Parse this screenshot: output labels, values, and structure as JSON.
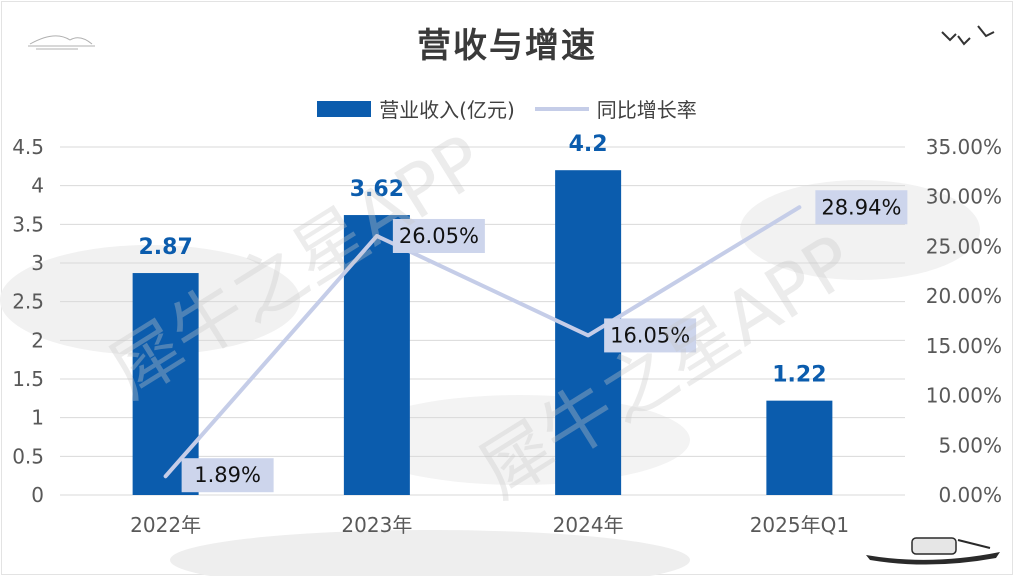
{
  "title": "营收与增速",
  "legend": {
    "bar_label": "营业收入(亿元)",
    "line_label": "同比增长率"
  },
  "watermark": "犀牛之星APP",
  "colors": {
    "bar": "#0b5cad",
    "line": "#c5cde8",
    "line_label_bg": "#cdd5ec",
    "bar_label": "#0b5cad",
    "grid": "#d9d9d9",
    "axis_text": "#595959"
  },
  "chart_data": {
    "type": "bar",
    "title": "营收与增速",
    "categories": [
      "2022年",
      "2023年",
      "2024年",
      "2025年Q1"
    ],
    "series": [
      {
        "name": "营业收入(亿元)",
        "type": "bar",
        "axis": "left",
        "values": [
          2.87,
          3.62,
          4.2,
          1.22
        ],
        "labels": [
          "2.87",
          "3.62",
          "4.2",
          "1.22"
        ]
      },
      {
        "name": "同比增长率",
        "type": "line",
        "axis": "right",
        "values": [
          1.89,
          26.05,
          16.05,
          28.94
        ],
        "labels": [
          "1.89%",
          "26.05%",
          "16.05%",
          "28.94%"
        ]
      }
    ],
    "y_left": {
      "min": 0,
      "max": 4.5,
      "step": 0.5,
      "ticks": [
        "0",
        "0.5",
        "1",
        "1.5",
        "2",
        "2.5",
        "3",
        "3.5",
        "4",
        "4.5"
      ]
    },
    "y_right": {
      "min": 0,
      "max": 35,
      "step": 5,
      "ticks": [
        "0.00%",
        "5.00%",
        "10.00%",
        "15.00%",
        "20.00%",
        "25.00%",
        "30.00%",
        "35.00%"
      ]
    },
    "grid": true,
    "legend_position": "top-center"
  }
}
